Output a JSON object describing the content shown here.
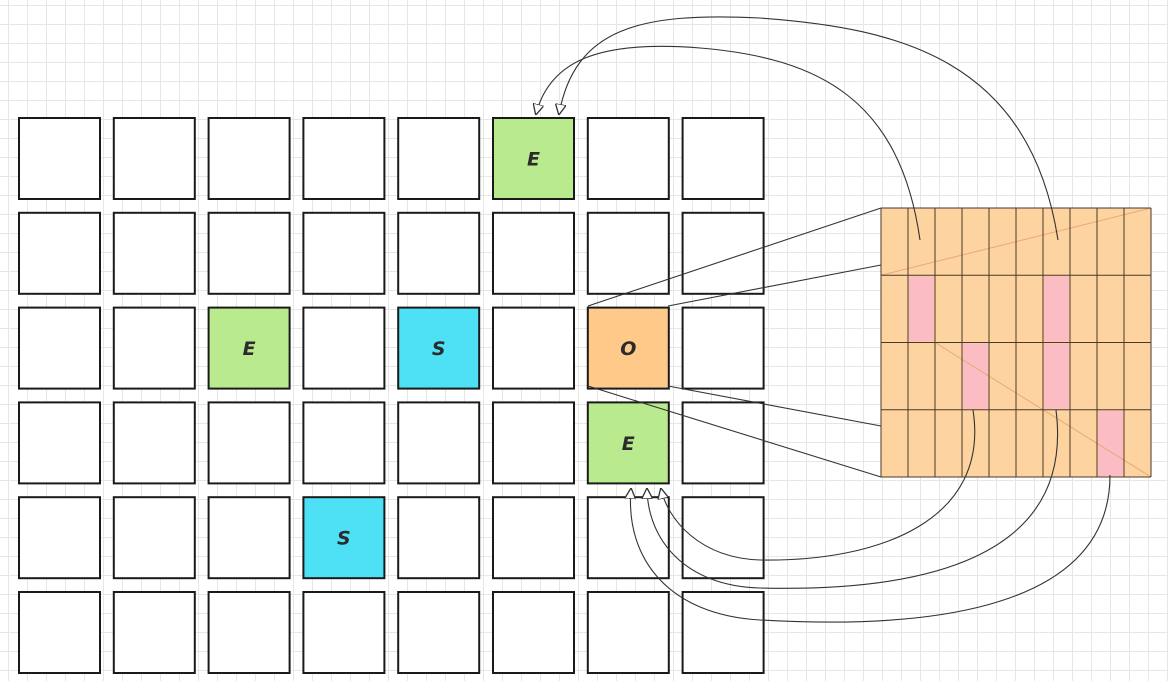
{
  "grid": {
    "rows": 6,
    "cols": 8,
    "special_cells": [
      {
        "row": 0,
        "col": 5,
        "label": "E",
        "fill": "#b9eb8e"
      },
      {
        "row": 2,
        "col": 2,
        "label": "E",
        "fill": "#b9eb8e"
      },
      {
        "row": 2,
        "col": 4,
        "label": "S",
        "fill": "#4ee0f5"
      },
      {
        "row": 2,
        "col": 6,
        "label": "O",
        "fill": "#fec989"
      },
      {
        "row": 3,
        "col": 6,
        "label": "E",
        "fill": "#b9eb8e"
      },
      {
        "row": 4,
        "col": 3,
        "label": "S",
        "fill": "#4ee0f5"
      }
    ]
  },
  "zoom_panel": {
    "rows": 4,
    "cols": 10,
    "fill": "#fdd39f",
    "highlight_fill": "#fbbcc4",
    "highlighted_cells": [
      {
        "row": 1,
        "col": 1
      },
      {
        "row": 1,
        "col": 6
      },
      {
        "row": 2,
        "col": 3
      },
      {
        "row": 2,
        "col": 6
      },
      {
        "row": 3,
        "col": 8
      }
    ]
  },
  "colors": {
    "cell_border": "#1a1a1a",
    "cell_fill": "#ffffff",
    "connector": "#333333",
    "diagonal": "#e8a87c"
  }
}
